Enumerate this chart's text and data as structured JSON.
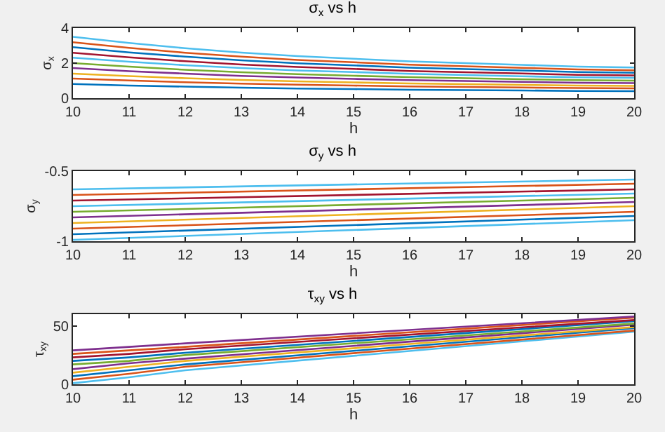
{
  "chart_data": [
    {
      "type": "line",
      "title": "σ$_{x}$ vs h",
      "xlabel": "h",
      "ylabel": "σ$_{x}$",
      "x": [
        10,
        11,
        12,
        13,
        14,
        15,
        16,
        17,
        18,
        19,
        20
      ],
      "xlim": [
        10,
        20
      ],
      "xticks": [
        10,
        11,
        12,
        13,
        14,
        15,
        16,
        17,
        18,
        19,
        20
      ],
      "ylim": [
        0,
        4
      ],
      "yticks": [
        0,
        2,
        4
      ],
      "series": [
        {
          "color": "#0072bd",
          "values": [
            0.81,
            0.72,
            0.66,
            0.6,
            0.55,
            0.52,
            0.48,
            0.46,
            0.44,
            0.41,
            0.4
          ]
        },
        {
          "color": "#d95319",
          "values": [
            1.12,
            1.01,
            0.91,
            0.83,
            0.77,
            0.72,
            0.67,
            0.64,
            0.61,
            0.58,
            0.56
          ]
        },
        {
          "color": "#edb120",
          "values": [
            1.4,
            1.26,
            1.14,
            1.04,
            0.96,
            0.9,
            0.84,
            0.8,
            0.76,
            0.72,
            0.7
          ]
        },
        {
          "color": "#7e2f8e",
          "values": [
            1.72,
            1.54,
            1.4,
            1.27,
            1.18,
            1.1,
            1.03,
            0.98,
            0.93,
            0.88,
            0.86
          ]
        },
        {
          "color": "#77ac30",
          "values": [
            2.0,
            1.8,
            1.62,
            1.48,
            1.37,
            1.28,
            1.2,
            1.14,
            1.08,
            1.03,
            1.0
          ]
        },
        {
          "color": "#4dbeee",
          "values": [
            2.31,
            2.08,
            1.88,
            1.72,
            1.58,
            1.49,
            1.39,
            1.32,
            1.25,
            1.19,
            1.16
          ]
        },
        {
          "color": "#a2142f",
          "values": [
            2.59,
            2.33,
            2.11,
            1.92,
            1.78,
            1.67,
            1.55,
            1.48,
            1.41,
            1.33,
            1.3
          ]
        },
        {
          "color": "#0072bd",
          "values": [
            2.91,
            2.61,
            2.37,
            2.16,
            1.99,
            1.87,
            1.74,
            1.66,
            1.58,
            1.49,
            1.45
          ]
        },
        {
          "color": "#d95319",
          "values": [
            3.19,
            2.87,
            2.59,
            2.37,
            2.18,
            2.05,
            1.91,
            1.82,
            1.73,
            1.64,
            1.59
          ]
        },
        {
          "color": "#4dbeee",
          "values": [
            3.5,
            3.15,
            2.85,
            2.6,
            2.4,
            2.25,
            2.1,
            2.0,
            1.9,
            1.8,
            1.75
          ]
        }
      ]
    },
    {
      "type": "line",
      "title": "σ$_{y}$ vs h",
      "xlabel": "h",
      "ylabel": "σ$_{y}$",
      "x": [
        10,
        20
      ],
      "xlim": [
        10,
        20
      ],
      "xticks": [
        10,
        11,
        12,
        13,
        14,
        15,
        16,
        17,
        18,
        19,
        20
      ],
      "ylim": [
        -1,
        -0.5
      ],
      "yticks": [
        -1,
        -0.5
      ],
      "series": [
        {
          "color": "#4dbeee",
          "values": [
            -0.99,
            -0.85
          ]
        },
        {
          "color": "#0072bd",
          "values": [
            -0.95,
            -0.82
          ]
        },
        {
          "color": "#d95319",
          "values": [
            -0.91,
            -0.79
          ]
        },
        {
          "color": "#edb120",
          "values": [
            -0.87,
            -0.75
          ]
        },
        {
          "color": "#7e2f8e",
          "values": [
            -0.83,
            -0.72
          ]
        },
        {
          "color": "#77ac30",
          "values": [
            -0.79,
            -0.69
          ]
        },
        {
          "color": "#4dbeee",
          "values": [
            -0.75,
            -0.66
          ]
        },
        {
          "color": "#a2142f",
          "values": [
            -0.71,
            -0.63
          ]
        },
        {
          "color": "#d95319",
          "values": [
            -0.67,
            -0.59
          ]
        },
        {
          "color": "#4dbeee",
          "values": [
            -0.63,
            -0.56
          ]
        }
      ]
    },
    {
      "type": "line",
      "title": "τ$_{xy}$ vs h",
      "xlabel": "h",
      "ylabel": "τ$_{xy}$",
      "x": [
        10,
        11,
        12,
        20
      ],
      "xlim": [
        10,
        20
      ],
      "xticks": [
        10,
        11,
        12,
        13,
        14,
        15,
        16,
        17,
        18,
        19,
        20
      ],
      "ylim": [
        0,
        60
      ],
      "yticks": [
        0,
        50
      ],
      "series": [
        {
          "color": "#4dbeee",
          "values": [
            1,
            6,
            12,
            45
          ]
        },
        {
          "color": "#d95319",
          "values": [
            4,
            9,
            15,
            46
          ]
        },
        {
          "color": "#0072bd",
          "values": [
            7,
            12,
            17,
            48
          ]
        },
        {
          "color": "#edb120",
          "values": [
            10,
            15,
            20,
            49
          ]
        },
        {
          "color": "#7e2f8e",
          "values": [
            13,
            18,
            22,
            51
          ]
        },
        {
          "color": "#77ac30",
          "values": [
            17,
            20,
            25,
            52
          ]
        },
        {
          "color": "#0072bd",
          "values": [
            20,
            23,
            27,
            54
          ]
        },
        {
          "color": "#a2142f",
          "values": [
            23,
            26,
            30,
            55
          ]
        },
        {
          "color": "#d95319",
          "values": [
            26,
            29,
            32,
            57
          ]
        },
        {
          "color": "#7e2f8e",
          "values": [
            29,
            32,
            35,
            58
          ]
        }
      ]
    }
  ]
}
